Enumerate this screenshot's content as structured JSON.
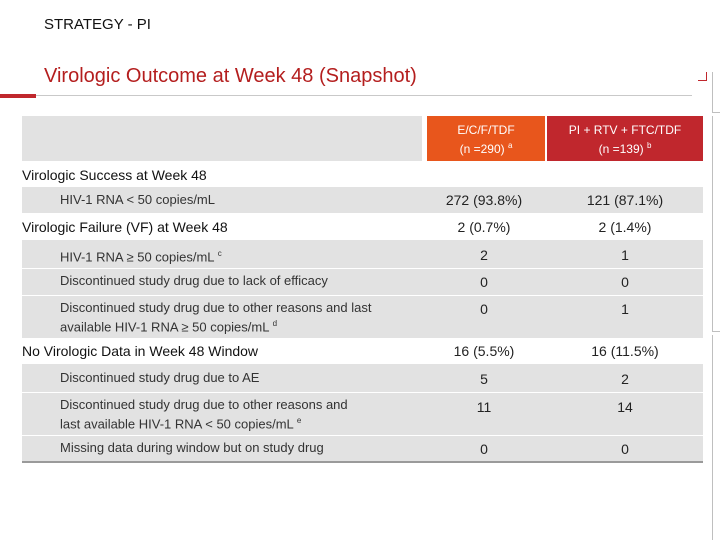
{
  "header": {
    "section": "STRATEGY - PI",
    "title": "Virologic Outcome at Week 48 (Snapshot)"
  },
  "table": {
    "columns": [
      {
        "name": "E/C/F/TDF",
        "n": "(n =290)",
        "sup": "a"
      },
      {
        "name": "PI + RTV + FTC/TDF",
        "n": "(n =139)",
        "sup": "b"
      }
    ],
    "rows": [
      {
        "type": "section",
        "label": "Virologic Success at Week 48"
      },
      {
        "type": "item",
        "label": "HIV-1 RNA < 50 copies/mL",
        "v1": "272 (93.8%)",
        "v2": "121 (87.1%)"
      },
      {
        "type": "section",
        "label": "Virologic Failure (VF) at Week 48",
        "v1": "2 (0.7%)",
        "v2": "2 (1.4%)"
      },
      {
        "type": "item",
        "label": "HIV-1 RNA ≥ 50 copies/mL",
        "sup": "c",
        "v1": "2",
        "v2": "1"
      },
      {
        "type": "item",
        "label": "Discontinued study drug due to lack of efficacy",
        "v1": "0",
        "v2": "0"
      },
      {
        "type": "item",
        "label_line1": "Discontinued study drug due to other reasons and  last",
        "label_line2": "available HIV-1 RNA ≥ 50 copies/mL",
        "sup": "d",
        "v1": "0",
        "v2": "1"
      },
      {
        "type": "section",
        "label": "No Virologic Data in Week 48 Window",
        "v1": "16 (5.5%)",
        "v2": "16 (11.5%)"
      },
      {
        "type": "item",
        "label": "Discontinued study drug due to AE",
        "v1": "5",
        "v2": "2"
      },
      {
        "type": "item",
        "label_line1": "Discontinued study drug due to other reasons and",
        "label_line2": "last available HIV-1 RNA < 50 copies/mL",
        "sup": "e",
        "v1": "11",
        "v2": "14"
      },
      {
        "type": "item",
        "label": "Missing data during window but on study drug",
        "v1": "0",
        "v2": "0"
      }
    ]
  },
  "colors": {
    "title_red": "#b41e1e",
    "header_orange": "#e8561c",
    "header_red": "#c0272d",
    "row_gray": "#e2e2e2"
  }
}
